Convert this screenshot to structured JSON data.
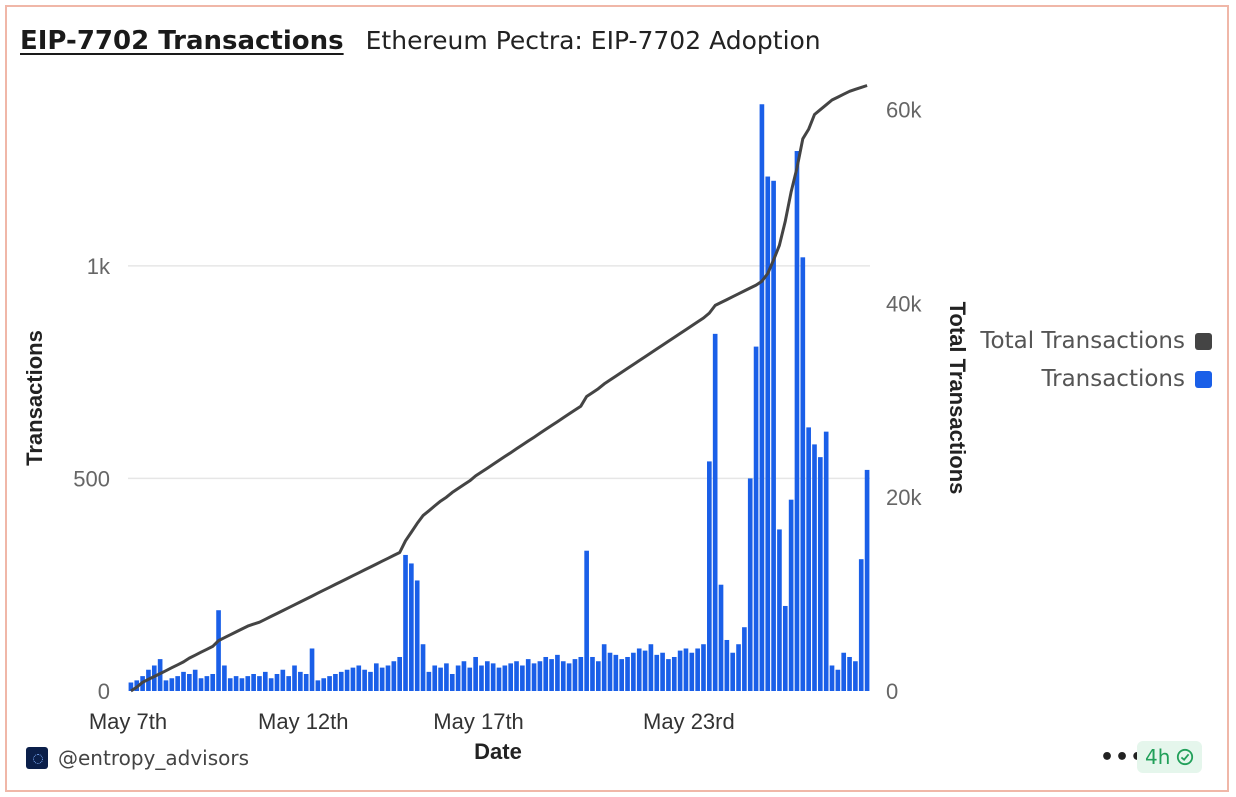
{
  "header": {
    "title_link": "EIP-7702 Transactions",
    "subtitle": "Ethereum Pectra: EIP-7702 Adoption"
  },
  "footer": {
    "handle": "@entropy_advisors",
    "more": "•••",
    "age": "4h"
  },
  "colors": {
    "bars": "#1a5fe8",
    "line": "#444444",
    "grid": "#e6e6e6",
    "axis_text": "#666666"
  },
  "chart_data": {
    "type": "bar",
    "xlabel": "Date",
    "ylabel": "Transactions",
    "y2label": "Total Transactions",
    "x_ticks": [
      "May 7th",
      "May 12th",
      "May 17th",
      "May 23rd"
    ],
    "y_ticks": [
      "0",
      "500",
      "1k"
    ],
    "y2_ticks": [
      "0",
      "20k",
      "40k",
      "60k"
    ],
    "ylim": [
      0,
      1390
    ],
    "y2lim": [
      0,
      61000
    ],
    "grid": true,
    "legend_position": "right",
    "series": [
      {
        "name": "Total Transactions",
        "type": "line",
        "axis": "right",
        "color": "#444444"
      },
      {
        "name": "Transactions",
        "type": "bar",
        "axis": "left",
        "color": "#1a5fe8"
      }
    ],
    "bucket_hours": 4,
    "transactions": [
      20,
      25,
      35,
      50,
      60,
      75,
      25,
      30,
      35,
      45,
      40,
      50,
      30,
      35,
      40,
      190,
      60,
      30,
      35,
      30,
      35,
      40,
      35,
      45,
      30,
      40,
      50,
      35,
      60,
      45,
      40,
      100,
      25,
      30,
      35,
      40,
      45,
      50,
      55,
      60,
      50,
      45,
      65,
      55,
      60,
      70,
      80,
      320,
      300,
      260,
      110,
      45,
      60,
      55,
      65,
      40,
      60,
      70,
      55,
      80,
      60,
      70,
      65,
      55,
      60,
      65,
      70,
      60,
      75,
      65,
      70,
      80,
      75,
      85,
      70,
      65,
      75,
      80,
      330,
      80,
      70,
      110,
      90,
      85,
      75,
      80,
      90,
      100,
      95,
      110,
      85,
      90,
      75,
      80,
      95,
      100,
      90,
      100,
      110,
      540,
      840,
      250,
      120,
      90,
      110,
      150,
      500,
      810,
      1380,
      1210,
      1200,
      380,
      200,
      450,
      1270,
      1020,
      620,
      580,
      550,
      610,
      60,
      50,
      90,
      80,
      70,
      310,
      520
    ],
    "total_transactions": [
      0,
      400,
      900,
      1200,
      1500,
      1800,
      2100,
      2400,
      2700,
      3000,
      3400,
      3700,
      4000,
      4300,
      4600,
      5200,
      5500,
      5800,
      6100,
      6400,
      6700,
      6900,
      7100,
      7400,
      7700,
      8000,
      8300,
      8600,
      8900,
      9200,
      9500,
      9800,
      10100,
      10400,
      10700,
      11000,
      11300,
      11600,
      11900,
      12200,
      12500,
      12800,
      13100,
      13400,
      13700,
      14000,
      14300,
      15500,
      16400,
      17300,
      18100,
      18600,
      19100,
      19600,
      20000,
      20500,
      20900,
      21300,
      21700,
      22200,
      22600,
      23000,
      23400,
      23800,
      24200,
      24600,
      25000,
      25400,
      25800,
      26200,
      26600,
      27000,
      27400,
      27800,
      28200,
      28600,
      29000,
      29400,
      30400,
      30800,
      31200,
      31700,
      32100,
      32500,
      32900,
      33300,
      33700,
      34100,
      34500,
      34900,
      35300,
      35700,
      36100,
      36500,
      36900,
      37300,
      37700,
      38100,
      38500,
      39000,
      39800,
      40100,
      40400,
      40700,
      41000,
      41300,
      41600,
      41900,
      42300,
      43100,
      44500,
      46000,
      48500,
      51500,
      54000,
      57000,
      58000,
      59500,
      60000,
      60500,
      61000,
      61300,
      61600,
      61900,
      62100,
      62300,
      62500
    ]
  }
}
